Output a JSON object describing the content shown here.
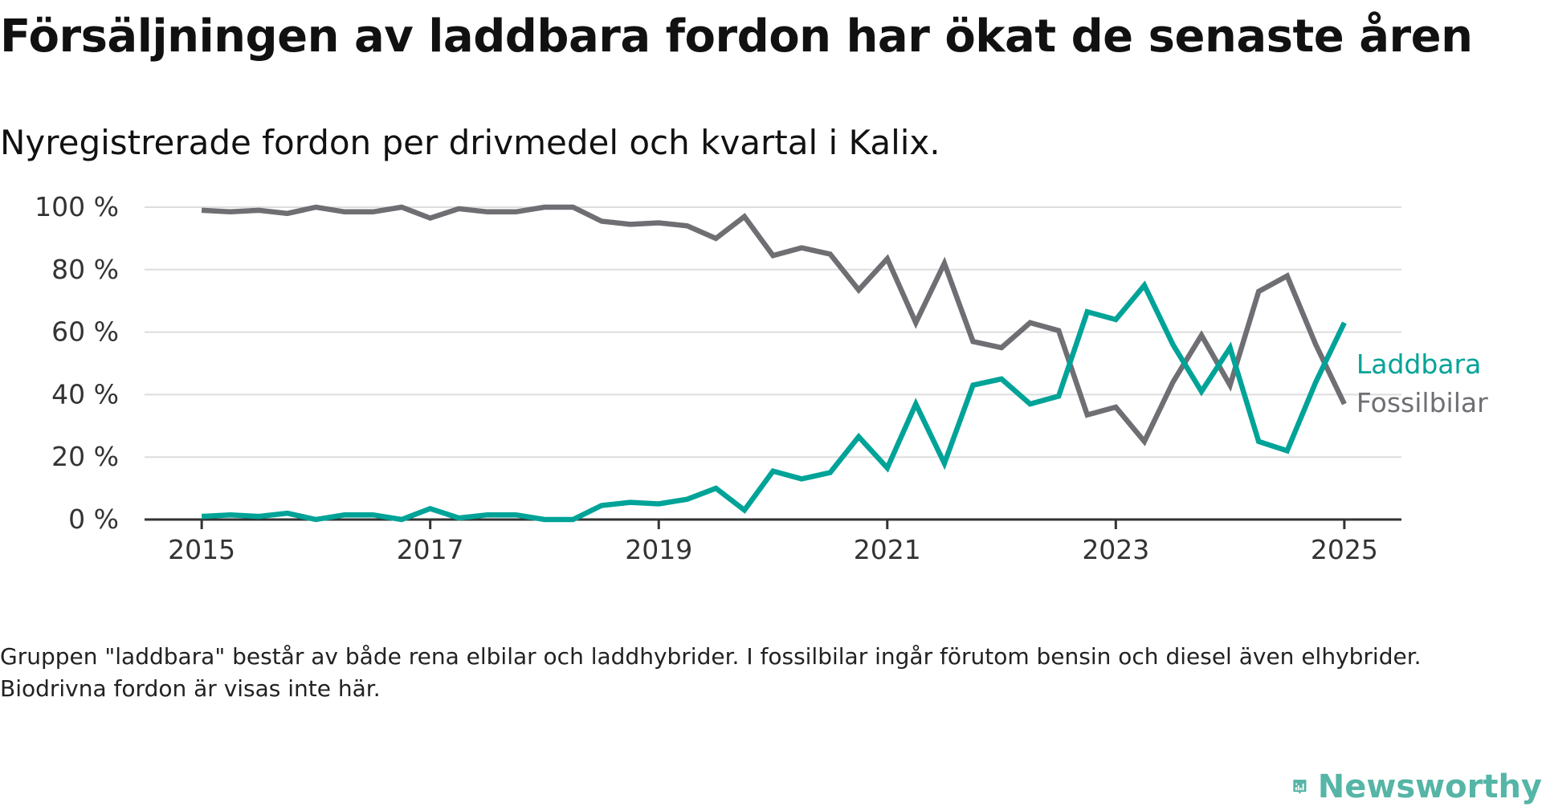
{
  "title": "Försäljningen av laddbara fordon har ökat de senaste åren",
  "subtitle": "Nyregistrerade fordon per drivmedel och kvartal i Kalix.",
  "footnote": "Gruppen \"laddbara\" består av både rena elbilar och laddhybrider. I fossilbilar ingår förutom bensin och diesel även elhybrider. Biodrivna fordon är visas inte här.",
  "brand": {
    "name": "Newsworthy",
    "icon": "newsworthy-logo-icon",
    "color": "#55b5a6"
  },
  "chart_data": {
    "type": "line",
    "title": "Försäljningen av laddbara fordon har ökat de senaste åren",
    "subtitle": "Nyregistrerade fordon per drivmedel och kvartal i Kalix.",
    "x_unit": "year (quarterly)",
    "x": [
      2015.0,
      2015.25,
      2015.5,
      2015.75,
      2016.0,
      2016.25,
      2016.5,
      2016.75,
      2017.0,
      2017.25,
      2017.5,
      2017.75,
      2018.0,
      2018.25,
      2018.5,
      2018.75,
      2019.0,
      2019.25,
      2019.5,
      2019.75,
      2020.0,
      2020.25,
      2020.5,
      2020.75,
      2021.0,
      2021.25,
      2021.5,
      2021.75,
      2022.0,
      2022.25,
      2022.5,
      2022.75,
      2023.0,
      2023.25,
      2023.5,
      2023.75,
      2024.0,
      2024.25,
      2024.5,
      2024.75,
      2025.0
    ],
    "xlim": [
      2014.5,
      2025.5
    ],
    "xticks": [
      2015,
      2017,
      2019,
      2021,
      2023,
      2025
    ],
    "ylim": [
      0,
      100
    ],
    "yticks": [
      0,
      20,
      40,
      60,
      80,
      100
    ],
    "y_tick_labels": [
      "0 %",
      "20 %",
      "40 %",
      "60 %",
      "80 %",
      "100 %"
    ],
    "xlabel": "",
    "ylabel": "",
    "grid": true,
    "legend": "direct labels at line ends (right)",
    "series": [
      {
        "name": "Laddbara",
        "color": "#00a398",
        "values": [
          1,
          1.5,
          1,
          2,
          0,
          1.5,
          1.5,
          0,
          3.5,
          0.5,
          1.5,
          1.5,
          0,
          0,
          4.5,
          5.5,
          5,
          6.5,
          10,
          3,
          15.5,
          13,
          15,
          26.5,
          16.5,
          37,
          18,
          43,
          45,
          37,
          39.5,
          66.5,
          64,
          75,
          56,
          41,
          55,
          25,
          22,
          44,
          63
        ]
      },
      {
        "name": "Fossilbilar",
        "color": "#6f6e73",
        "values": [
          99,
          98.5,
          99,
          98,
          100,
          98.5,
          98.5,
          100,
          96.5,
          99.5,
          98.5,
          98.5,
          100,
          100,
          95.5,
          94.5,
          95,
          94,
          90,
          97,
          84.5,
          87,
          85,
          73.5,
          83.5,
          63,
          82,
          57,
          55,
          63,
          60.5,
          33.5,
          36,
          25,
          44,
          59,
          43,
          73,
          78,
          56,
          37
        ]
      }
    ]
  }
}
